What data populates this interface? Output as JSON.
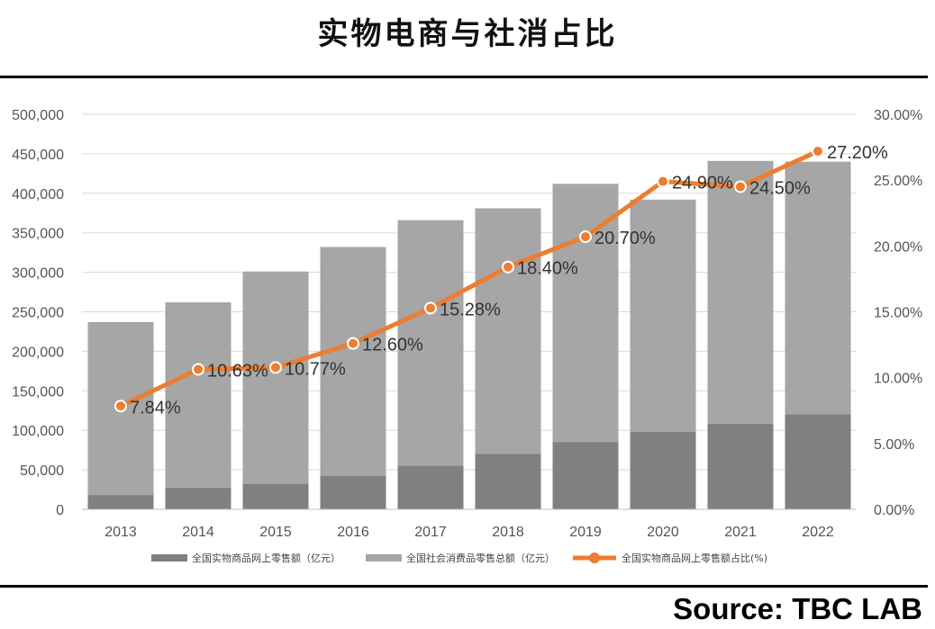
{
  "title": "实物电商与社消占比",
  "source": "Source: TBC LAB",
  "colors": {
    "online_bar": "#808080",
    "total_bar": "#a6a6a6",
    "line": "#ed7d31",
    "grid": "#d9d9d9"
  },
  "chart_data": {
    "type": "bar+line",
    "categories": [
      "2013",
      "2014",
      "2015",
      "2016",
      "2017",
      "2018",
      "2019",
      "2020",
      "2021",
      "2022"
    ],
    "y_left": {
      "min": 0,
      "max": 500000,
      "ticks": [
        "0",
        "50,000",
        "100,000",
        "150,000",
        "200,000",
        "250,000",
        "300,000",
        "350,000",
        "400,000",
        "450,000",
        "500,000"
      ]
    },
    "y_right": {
      "min": 0,
      "max": 30,
      "ticks": [
        "0.00%",
        "5.00%",
        "10.00%",
        "15.00%",
        "20.00%",
        "25.00%",
        "30.00%"
      ]
    },
    "series": [
      {
        "name": "全国实物商品网上零售额（亿元）",
        "type": "bar",
        "values": [
          18000,
          27000,
          32000,
          42000,
          55000,
          70000,
          85000,
          98000,
          108000,
          120000
        ]
      },
      {
        "name": "全国社会消费品零售总额（亿元）",
        "type": "bar",
        "values": [
          237000,
          262000,
          301000,
          332000,
          366000,
          381000,
          412000,
          392000,
          441000,
          440000
        ]
      },
      {
        "name": "全国实物商品网上零售额占比(%)",
        "type": "line",
        "values": [
          7.84,
          10.63,
          10.77,
          12.6,
          15.28,
          18.4,
          20.7,
          24.9,
          24.5,
          27.2
        ],
        "labels": [
          "7.84%",
          "10.63%",
          "10.77%",
          "12.60%",
          "15.28%",
          "18.40%",
          "20.70%",
          "24.90%",
          "24.50%",
          "27.20%"
        ]
      }
    ],
    "grid": true,
    "legend_position": "bottom"
  }
}
